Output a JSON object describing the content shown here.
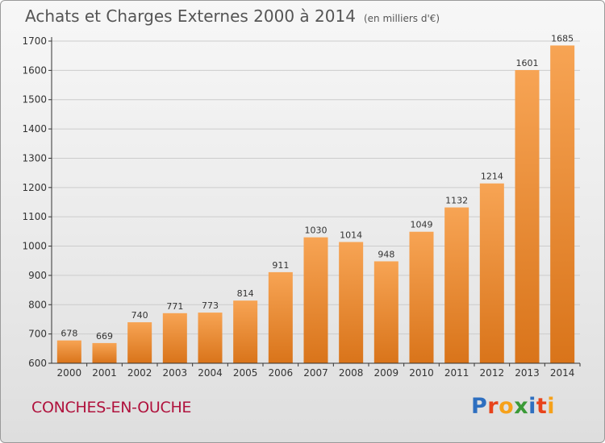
{
  "title": "Achats et Charges Externes 2000 à 2014",
  "unit": "(en milliers d'€)",
  "city": "CONCHES-EN-OUCHE",
  "logo": {
    "text": "Proxiti",
    "letters": [
      {
        "ch": "P",
        "color": "#2e6fc0"
      },
      {
        "ch": "r",
        "color": "#e8431b"
      },
      {
        "ch": "o",
        "color": "#f6a11a"
      },
      {
        "ch": "x",
        "color": "#3b9a37"
      },
      {
        "ch": "i",
        "color": "#2e6fc0"
      },
      {
        "ch": "t",
        "color": "#e8431b"
      },
      {
        "ch": "i",
        "color": "#f6a11a"
      }
    ]
  },
  "chart_data": {
    "type": "bar",
    "categories": [
      "2000",
      "2001",
      "2002",
      "2003",
      "2004",
      "2005",
      "2006",
      "2007",
      "2008",
      "2009",
      "2010",
      "2011",
      "2012",
      "2013",
      "2014"
    ],
    "values": [
      678,
      669,
      740,
      771,
      773,
      814,
      911,
      1030,
      1014,
      948,
      1049,
      1132,
      1214,
      1601,
      1685
    ],
    "ylim": [
      600,
      1700
    ],
    "yticks": [
      600,
      700,
      800,
      900,
      1000,
      1100,
      1200,
      1300,
      1400,
      1500,
      1600,
      1700
    ],
    "grid": true,
    "bar_color": "#f0902e",
    "grid_color": "#cccccc",
    "axis_color": "#333333"
  }
}
